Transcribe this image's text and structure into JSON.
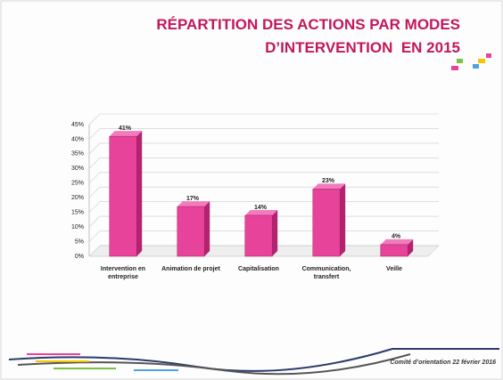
{
  "chart_data": {
    "type": "bar",
    "title": [
      "RÉPARTITION DES ACTIONS PAR MODES",
      "D’INTERVENTION  EN 2015"
    ],
    "categories": [
      "Intervention en entreprise",
      "Animation de projet",
      "Capitalisation",
      "Communication, transfert",
      "Veille"
    ],
    "values": [
      41,
      17,
      14,
      23,
      4
    ],
    "value_labels": [
      "41%",
      "17%",
      "14%",
      "23%",
      "4%"
    ],
    "color": "#e8439a",
    "ylim": [
      0,
      45
    ],
    "yticks": [
      {
        "value": 0,
        "label": "0%"
      },
      {
        "value": 5,
        "label": "5%"
      },
      {
        "value": 10,
        "label": "10%"
      },
      {
        "value": 15,
        "label": "15%"
      },
      {
        "value": 20,
        "label": "20%"
      },
      {
        "value": 25,
        "label": "25%"
      },
      {
        "value": 30,
        "label": "30%"
      },
      {
        "value": 35,
        "label": "35%"
      },
      {
        "value": 40,
        "label": "40%"
      },
      {
        "value": 45,
        "label": "45%"
      }
    ],
    "grid": true
  },
  "footer": "Comité d’orientation 22 février 2016"
}
